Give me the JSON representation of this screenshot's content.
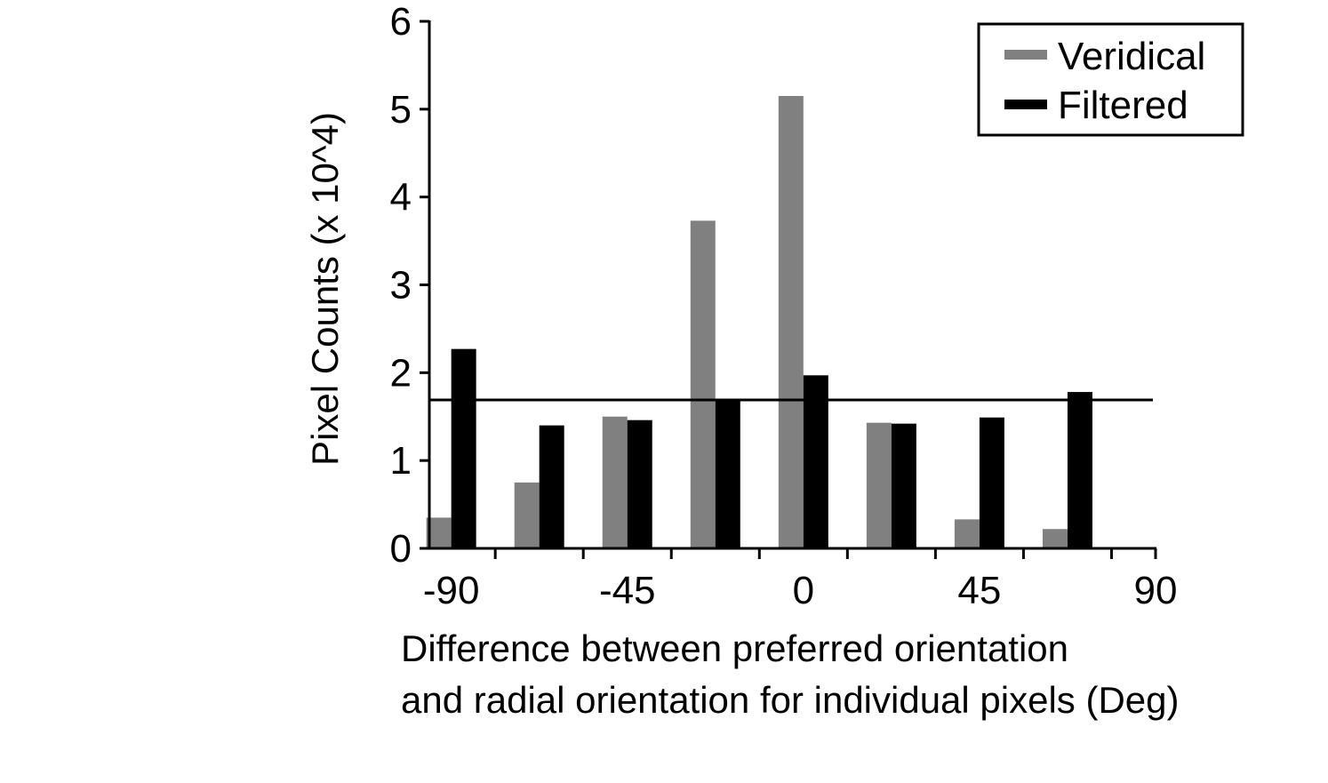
{
  "chart_data": {
    "type": "bar",
    "categories": [
      -90,
      -67.5,
      -45,
      -22.5,
      0,
      22.5,
      45,
      67.5
    ],
    "series": [
      {
        "name": "Veridical",
        "color": "#808080",
        "values": [
          0.35,
          0.75,
          1.5,
          3.73,
          5.15,
          1.43,
          0.33,
          0.22
        ]
      },
      {
        "name": "Filtered",
        "color": "#000000",
        "values": [
          2.27,
          1.4,
          1.46,
          1.7,
          1.97,
          1.42,
          1.49,
          1.78
        ]
      }
    ],
    "reference_line": {
      "y": 1.69
    },
    "xlim": [
      -95.6,
      90
    ],
    "ylim": [
      0,
      6
    ],
    "xticks": [
      -90,
      -45,
      0,
      45,
      90
    ],
    "xticks_labeled_text": [
      "-90",
      "-45",
      "0",
      "45",
      "90"
    ],
    "yticks": [
      0,
      1,
      2,
      3,
      4,
      5,
      6
    ],
    "yticks_text": [
      "0",
      "1",
      "2",
      "3",
      "4",
      "5",
      "6"
    ],
    "ylabel": "Pixel Counts (x 10^4)",
    "xlabel_lines": [
      "Difference between preferred orientation",
      "and radial orientation for individual pixels (Deg)"
    ],
    "legend_position": "top-right",
    "grid": false
  }
}
